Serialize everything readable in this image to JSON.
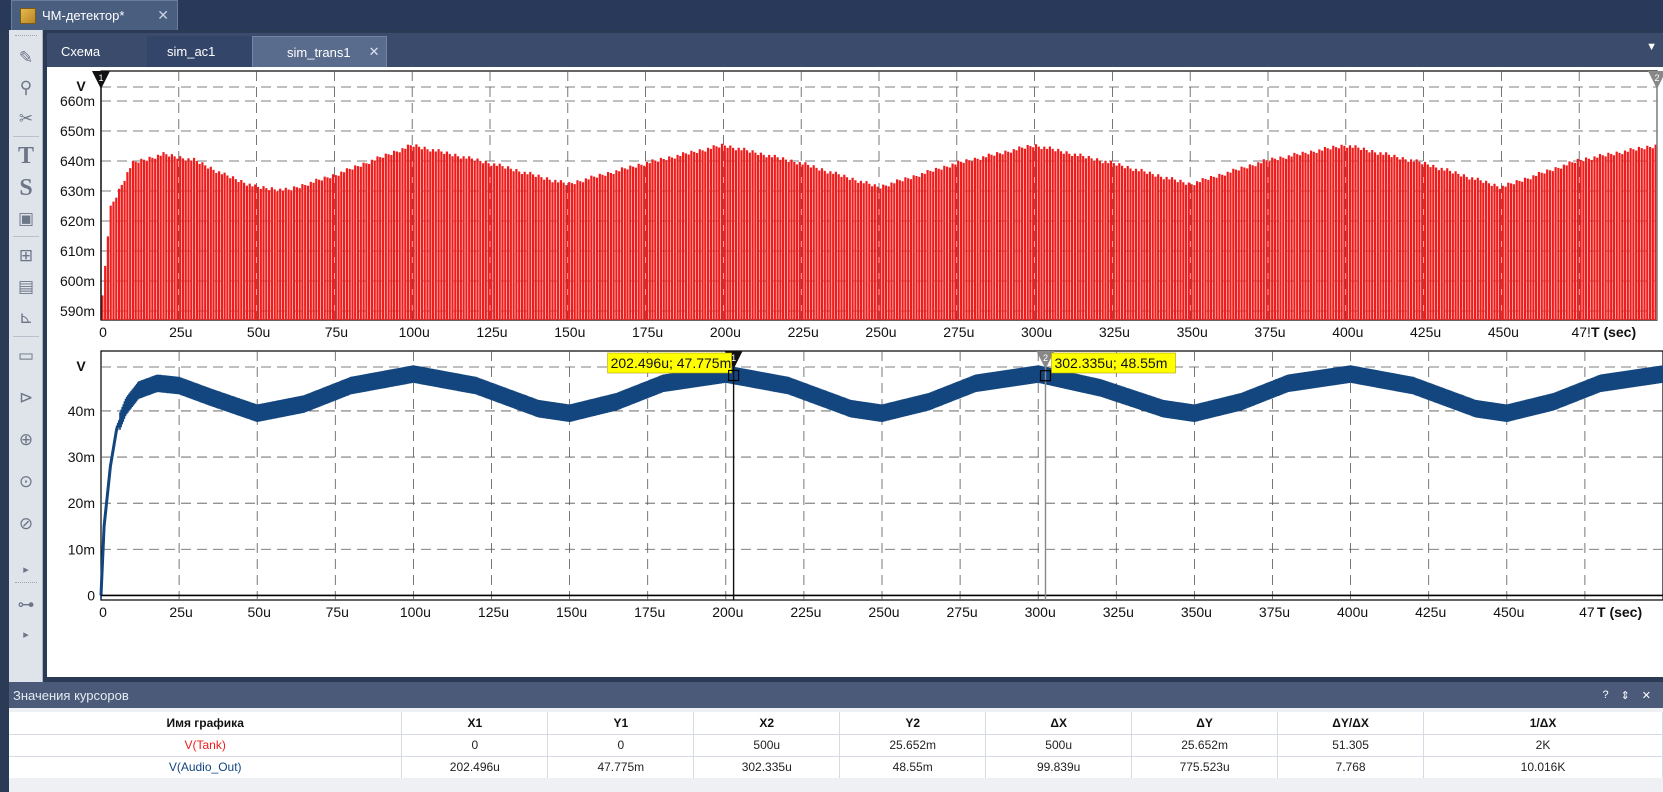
{
  "window": {
    "document_title": "ЧМ-детектор*",
    "close_glyph": "✕"
  },
  "sheet_tabs": [
    {
      "label": "Схема"
    },
    {
      "label": "sim_ac1"
    },
    {
      "label": "sim_trans1",
      "active": true
    }
  ],
  "tool_icons": [
    "pencil-icon",
    "magnifier-icon",
    "scissors-icon",
    "text-icon",
    "symbol-icon",
    "image-icon",
    "chip-icon",
    "ic-icon",
    "graph-icon",
    "resistor-icon",
    "diode-icon",
    "voltage-source-icon",
    "function-source-icon",
    "current-source-icon",
    "play-icon",
    "switch-icon",
    "play-icon"
  ],
  "colors": {
    "series_tank": "#ef1c1c",
    "series_audio": "#13457f",
    "grid": "#555555",
    "cursor_label_bg": "#ffff00"
  },
  "chart_data": [
    {
      "type": "line",
      "ylabel": "V",
      "xlabel": "T (sec)",
      "x_ticks": [
        "0",
        "25u",
        "50u",
        "75u",
        "100u",
        "125u",
        "150u",
        "175u",
        "200u",
        "225u",
        "250u",
        "275u",
        "300u",
        "325u",
        "350u",
        "375u",
        "400u",
        "425u",
        "450u",
        "47!"
      ],
      "x_tick_values": [
        0,
        25,
        50,
        75,
        100,
        125,
        150,
        175,
        200,
        225,
        250,
        275,
        300,
        325,
        350,
        375,
        400,
        425,
        450,
        475
      ],
      "x_unit": "us",
      "xlim": [
        0,
        500
      ],
      "y_ticks": [
        "590m",
        "600m",
        "610m",
        "620m",
        "630m",
        "640m",
        "650m",
        "660m"
      ],
      "y_tick_values": [
        590,
        600,
        610,
        620,
        630,
        640,
        650,
        660
      ],
      "ylim": [
        587,
        670
      ],
      "series": [
        {
          "name": "V(Tank)",
          "color": "#ef1c1c",
          "envelope_x": [
            0,
            3,
            10,
            20,
            30,
            40,
            50,
            60,
            75,
            100,
            125,
            150,
            175,
            200,
            225,
            250,
            275,
            300,
            325,
            350,
            375,
            400,
            425,
            450,
            475,
            500
          ],
          "envelope_y_mV": [
            590,
            625,
            640,
            643,
            641,
            636,
            632,
            631,
            636,
            646,
            640,
            633,
            640,
            646,
            640,
            632,
            640,
            646,
            640,
            633,
            641,
            646,
            640,
            632,
            641,
            646
          ]
        }
      ],
      "cursors": [
        {
          "id": "1",
          "x": 0,
          "color": "#111111"
        },
        {
          "id": "2",
          "x": 500,
          "color": "#888888"
        }
      ]
    },
    {
      "type": "line",
      "ylabel": "V",
      "xlabel": "T (sec)",
      "x_ticks": [
        "0",
        "25u",
        "50u",
        "75u",
        "100u",
        "125u",
        "150u",
        "175u",
        "200u",
        "225u",
        "250u",
        "275u",
        "300u",
        "325u",
        "350u",
        "375u",
        "400u",
        "425u",
        "450u",
        "47"
      ],
      "x_tick_values": [
        0,
        25,
        50,
        75,
        100,
        125,
        150,
        175,
        200,
        225,
        250,
        275,
        300,
        325,
        350,
        375,
        400,
        425,
        450,
        475
      ],
      "x_unit": "us",
      "xlim": [
        0,
        500
      ],
      "y_ticks": [
        "0",
        "10m",
        "20m",
        "30m",
        "40m"
      ],
      "y_tick_values": [
        0,
        10,
        20,
        30,
        40
      ],
      "ylim": [
        -1,
        53
      ],
      "series": [
        {
          "name": "V(Audio_Out)",
          "color": "#13457f",
          "x": [
            0,
            1,
            3,
            5,
            8,
            12,
            18,
            25,
            35,
            50,
            65,
            80,
            100,
            120,
            140,
            150,
            165,
            180,
            200,
            220,
            240,
            250,
            265,
            280,
            300,
            320,
            340,
            350,
            365,
            380,
            400,
            420,
            440,
            450,
            465,
            480,
            500
          ],
          "y_mV": [
            0,
            15,
            28,
            36,
            41,
            44.5,
            46,
            45.5,
            43,
            39.5,
            41.5,
            45.5,
            48,
            45.5,
            40.5,
            39.5,
            42,
            46,
            48,
            45.5,
            40.5,
            39.5,
            42,
            46,
            48,
            45,
            40.5,
            39.5,
            42,
            46,
            48,
            45.5,
            40.5,
            39.5,
            42,
            46,
            48
          ]
        }
      ],
      "cursors": [
        {
          "id": "1",
          "x": 202.496,
          "label": "202.496u; 47.775m",
          "color": "#111111"
        },
        {
          "id": "2",
          "x": 302.335,
          "label": "302.335u; 48.55m",
          "color": "#888888"
        }
      ]
    }
  ],
  "cursor_panel": {
    "title": "Значения курсоров",
    "controls": [
      "?",
      "⇕",
      "✕"
    ],
    "columns": [
      "Имя графика",
      "X1",
      "Y1",
      "X2",
      "Y2",
      "ΔX",
      "ΔY",
      "ΔY/ΔX",
      "1/ΔX"
    ],
    "rows": [
      {
        "name": "V(Tank)",
        "color": "#ef1c1c",
        "values": [
          "0",
          "0",
          "500u",
          "25.652m",
          "500u",
          "25.652m",
          "51.305",
          "2K"
        ]
      },
      {
        "name": "V(Audio_Out)",
        "color": "#13457f",
        "values": [
          "202.496u",
          "47.775m",
          "302.335u",
          "48.55m",
          "99.839u",
          "775.523u",
          "7.768",
          "10.016K"
        ]
      }
    ]
  }
}
